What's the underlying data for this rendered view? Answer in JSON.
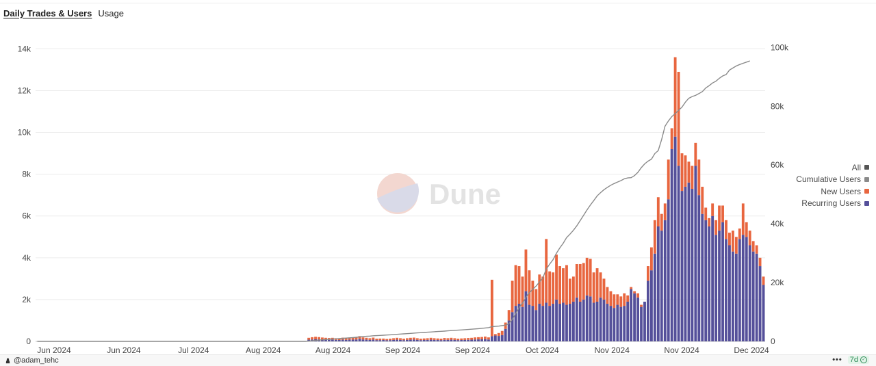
{
  "tabs": [
    {
      "label": "Daily Trades & Users",
      "active": true
    },
    {
      "label": "Usage",
      "active": false
    }
  ],
  "watermark": "Dune",
  "legend": {
    "all_label": "All",
    "items": [
      {
        "label": "Cumulative Users",
        "color": "#8a8a8a"
      },
      {
        "label": "New Users",
        "color": "#e8663f"
      },
      {
        "label": "Recurring Users",
        "color": "#55509a"
      }
    ],
    "all_color": "#555555"
  },
  "footer": {
    "author": "@adam_tehc",
    "more": "•••",
    "freshness": "7d"
  },
  "chart_data": {
    "type": "bar",
    "stacked": true,
    "x_tick_labels": [
      "Jun 2024",
      "Jun 2024",
      "Jul 2024",
      "Aug 2024",
      "Aug 2024",
      "Sep 2024",
      "Sep 2024",
      "Oct 2024",
      "Nov 2024",
      "Nov 2024",
      "Dec 2024"
    ],
    "y_left_ticks": [
      "0",
      "2k",
      "4k",
      "6k",
      "8k",
      "10k",
      "12k",
      "14k"
    ],
    "y_left_range": [
      0,
      14700
    ],
    "y_right_ticks": [
      "0",
      "20k",
      "40k",
      "60k",
      "80k",
      "100k"
    ],
    "y_right_range": [
      0,
      104500
    ],
    "series": [
      {
        "name": "Recurring Users",
        "type": "bar",
        "color": "#55509a",
        "values": [
          0,
          0,
          0,
          0,
          0,
          0,
          0,
          0,
          0,
          0,
          0,
          0,
          0,
          0,
          0,
          0,
          0,
          0,
          0,
          0,
          0,
          0,
          0,
          0,
          0,
          0,
          0,
          0,
          0,
          0,
          0,
          0,
          0,
          0,
          0,
          0,
          0,
          0,
          0,
          0,
          0,
          0,
          0,
          0,
          0,
          0,
          0,
          0,
          0,
          0,
          0,
          0,
          0,
          0,
          0,
          0,
          0,
          0,
          0,
          0,
          0,
          0,
          0,
          0,
          0,
          0,
          0,
          0,
          0,
          0,
          0,
          0,
          0,
          0,
          0,
          0,
          0,
          0,
          0,
          0,
          80,
          90,
          100,
          95,
          85,
          80,
          75,
          80,
          70,
          65,
          80,
          70,
          80,
          85,
          90,
          120,
          90,
          80,
          70,
          85,
          60,
          60,
          65,
          55,
          60,
          70,
          80,
          70,
          60,
          70,
          80,
          85,
          70,
          60,
          65,
          70,
          80,
          70,
          65,
          60,
          75,
          70,
          80,
          70,
          60,
          65,
          70,
          75,
          80,
          90,
          95,
          100,
          110,
          90,
          250,
          280,
          260,
          300,
          600,
          1000,
          1400,
          1700,
          1800,
          1650,
          2400,
          1750,
          1700,
          1500,
          1800,
          1700,
          1850,
          1700,
          1800,
          2000,
          1800,
          1850,
          1750,
          1800,
          1900,
          2100,
          1900,
          2000,
          2200,
          2150,
          1850,
          1900,
          2100,
          2000,
          1800,
          1700,
          1600,
          1750,
          1650,
          1700,
          1900,
          2500,
          2300,
          2100,
          1650,
          1900,
          2900,
          3400,
          4200,
          5500,
          5300,
          5800,
          6800,
          9200,
          9800,
          8400,
          7200,
          7400,
          7600,
          7300,
          8400,
          7000,
          6100,
          5800,
          5500,
          6000,
          5100,
          5300,
          5700,
          4900,
          4600,
          4300,
          4200,
          4900,
          5100,
          5000,
          4600,
          4300,
          4200,
          3600,
          2700
        ]
      },
      {
        "name": "New Users",
        "type": "bar",
        "color": "#e8663f",
        "values": [
          0,
          0,
          0,
          0,
          0,
          0,
          0,
          0,
          0,
          0,
          0,
          0,
          0,
          0,
          0,
          0,
          0,
          0,
          0,
          0,
          0,
          0,
          0,
          0,
          0,
          0,
          0,
          0,
          0,
          0,
          0,
          0,
          0,
          0,
          0,
          0,
          0,
          0,
          0,
          0,
          0,
          0,
          0,
          0,
          0,
          0,
          0,
          0,
          0,
          0,
          0,
          0,
          0,
          0,
          0,
          0,
          0,
          0,
          0,
          0,
          0,
          0,
          0,
          0,
          0,
          0,
          0,
          0,
          0,
          0,
          0,
          0,
          0,
          0,
          0,
          0,
          0,
          0,
          0,
          0,
          90,
          110,
          120,
          110,
          100,
          90,
          85,
          90,
          80,
          75,
          95,
          80,
          85,
          90,
          100,
          130,
          100,
          90,
          80,
          95,
          70,
          75,
          70,
          60,
          70,
          80,
          90,
          80,
          70,
          80,
          90,
          95,
          80,
          70,
          75,
          80,
          90,
          80,
          75,
          70,
          85,
          80,
          90,
          80,
          70,
          75,
          80,
          85,
          90,
          100,
          105,
          110,
          120,
          100,
          2700,
          70,
          140,
          200,
          300,
          500,
          1500,
          1950,
          1800,
          1450,
          2000,
          1650,
          1200,
          1000,
          1400,
          1400,
          3050,
          1650,
          1500,
          2150,
          1800,
          1650,
          1900,
          1200,
          1200,
          1600,
          1800,
          1750,
          1800,
          1800,
          1450,
          1600,
          1200,
          1000,
          800,
          700,
          650,
          500,
          500,
          600,
          300,
          100,
          100,
          200,
          100,
          0,
          700,
          1100,
          1600,
          1400,
          800,
          800,
          1900,
          1000,
          3800,
          4500,
          1800,
          1500,
          1000,
          1100,
          1100,
          1700,
          1300,
          600,
          400,
          600,
          700,
          1200,
          800,
          900,
          600,
          1000,
          800,
          500,
          1500,
          700,
          700,
          500,
          400,
          400,
          400
        ]
      },
      {
        "name": "Cumulative Users",
        "type": "line",
        "axis": "right",
        "color": "#8a8a8a",
        "values": [
          0,
          0,
          0,
          0,
          0,
          0,
          0,
          0,
          0,
          0,
          0,
          0,
          0,
          0,
          0,
          0,
          0,
          0,
          0,
          0,
          0,
          0,
          0,
          0,
          0,
          0,
          0,
          0,
          0,
          0,
          0,
          0,
          0,
          0,
          0,
          0,
          0,
          0,
          0,
          0,
          0,
          0,
          0,
          0,
          0,
          0,
          0,
          0,
          0,
          0,
          0,
          0,
          0,
          0,
          0,
          0,
          0,
          0,
          0,
          0,
          0,
          0,
          0,
          0,
          0,
          0,
          0,
          0,
          0,
          0,
          0,
          0,
          0,
          0,
          0,
          0,
          0,
          0,
          0,
          0,
          100,
          200,
          320,
          430,
          530,
          620,
          700,
          790,
          870,
          950,
          1040,
          1120,
          1210,
          1300,
          1400,
          1530,
          1630,
          1720,
          1800,
          1900,
          1960,
          2030,
          2100,
          2160,
          2230,
          2310,
          2400,
          2480,
          2550,
          2630,
          2720,
          2810,
          2890,
          2960,
          3030,
          3110,
          3200,
          3280,
          3350,
          3420,
          3500,
          3580,
          3670,
          3750,
          3820,
          3890,
          3970,
          4050,
          4140,
          4240,
          4340,
          4450,
          4570,
          4670,
          5000,
          5100,
          5200,
          5350,
          5550,
          6000,
          7500,
          9500,
          11500,
          13000,
          15000,
          16500,
          17700,
          18800,
          20200,
          21600,
          24600,
          26300,
          27800,
          30000,
          31800,
          33400,
          35300,
          36500,
          37800,
          39300,
          41100,
          42900,
          44700,
          46400,
          47900,
          49500,
          50600,
          51600,
          52400,
          53100,
          53700,
          54200,
          54700,
          55300,
          55600,
          55700,
          56400,
          57500,
          59100,
          60400,
          61300,
          62000,
          63900,
          64900,
          68700,
          73200,
          75000,
          76500,
          77500,
          78600,
          79700,
          81400,
          82700,
          83300,
          83700,
          84300,
          85000,
          86200,
          87000,
          87900,
          88500,
          89500,
          90300,
          90800,
          92300,
          93000,
          93700,
          94200,
          94600,
          95000,
          95400
        ]
      }
    ]
  }
}
